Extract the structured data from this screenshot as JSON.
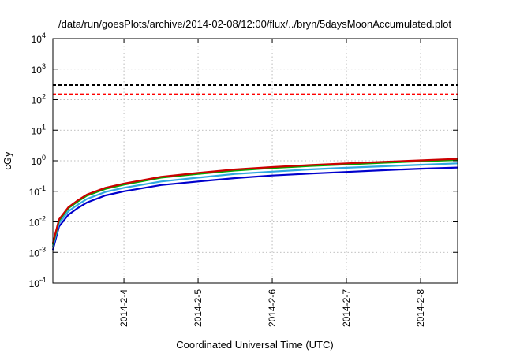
{
  "chart_data": {
    "type": "line",
    "title": "/data/run/goesPlots/archive/2014-02-08/12:00/flux/../bryn/5daysMoonAccumulated.plot",
    "xlabel": "Coordinated Universal Time (UTC)",
    "ylabel": "cGy",
    "yscale": "log",
    "ylim": [
      0.0001,
      10000
    ],
    "y_ticks": [
      {
        "value": 0.0001,
        "base": "10",
        "exp": "-4"
      },
      {
        "value": 0.001,
        "base": "10",
        "exp": "-3"
      },
      {
        "value": 0.01,
        "base": "10",
        "exp": "-2"
      },
      {
        "value": 0.1,
        "base": "10",
        "exp": "-1"
      },
      {
        "value": 1,
        "base": "10",
        "exp": "0"
      },
      {
        "value": 10,
        "base": "10",
        "exp": "1"
      },
      {
        "value": 100,
        "base": "10",
        "exp": "2"
      },
      {
        "value": 1000,
        "base": "10",
        "exp": "3"
      },
      {
        "value": 10000,
        "base": "10",
        "exp": "4"
      }
    ],
    "xlim": [
      "2014-02-03T01:00",
      "2014-02-08T12:00"
    ],
    "x_ticks": [
      "2014-2-4",
      "2014-2-5",
      "2014-2-6",
      "2014-2-7",
      "2014-2-8"
    ],
    "x_tick_dates": [
      "2014-02-04",
      "2014-02-05",
      "2014-02-06",
      "2014-02-07",
      "2014-02-08"
    ],
    "grid": true,
    "legend": "none",
    "x": [
      "2014-02-03T01:00",
      "2014-02-03T03:00",
      "2014-02-03T06:00",
      "2014-02-03T09:00",
      "2014-02-03T12:00",
      "2014-02-03T18:00",
      "2014-02-04T00:00",
      "2014-02-04T12:00",
      "2014-02-05T00:00",
      "2014-02-05T12:00",
      "2014-02-06T00:00",
      "2014-02-06T12:00",
      "2014-02-07T00:00",
      "2014-02-07T12:00",
      "2014-02-08T00:00",
      "2014-02-08T12:00"
    ],
    "series": [
      {
        "color": "#cc0000",
        "values": [
          0.002,
          0.012,
          0.03,
          0.05,
          0.078,
          0.13,
          0.18,
          0.3,
          0.4,
          0.52,
          0.62,
          0.72,
          0.82,
          0.92,
          1.03,
          1.15
        ]
      },
      {
        "color": "#00aa00",
        "values": [
          0.0018,
          0.011,
          0.028,
          0.046,
          0.072,
          0.12,
          0.165,
          0.28,
          0.37,
          0.48,
          0.58,
          0.67,
          0.76,
          0.86,
          0.96,
          1.06
        ]
      },
      {
        "color": "#2fa8e0",
        "values": [
          0.0015,
          0.009,
          0.022,
          0.036,
          0.056,
          0.095,
          0.13,
          0.21,
          0.28,
          0.37,
          0.44,
          0.52,
          0.59,
          0.66,
          0.74,
          0.82
        ]
      },
      {
        "color": "#0000cc",
        "values": [
          0.0012,
          0.007,
          0.017,
          0.028,
          0.043,
          0.073,
          0.1,
          0.16,
          0.21,
          0.27,
          0.33,
          0.38,
          0.43,
          0.49,
          0.55,
          0.6
        ]
      }
    ],
    "reference_lines": [
      {
        "value": 300,
        "color": "#000000",
        "style": "dashed"
      },
      {
        "value": 150,
        "color": "#ff0000",
        "style": "dashed"
      }
    ]
  }
}
